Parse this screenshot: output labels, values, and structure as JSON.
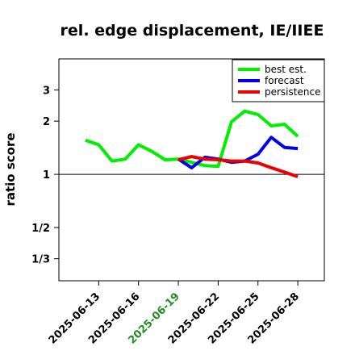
{
  "chart_data": {
    "type": "line",
    "title": "rel. edge displacement, IE/IIEE",
    "xlabel": "",
    "ylabel": "ratio score",
    "y_scale": "log",
    "ylim": [
      0.25,
      4.5
    ],
    "xlim": [
      "2025-06-10",
      "2025-06-30"
    ],
    "grid": false,
    "reference_line": 1,
    "legend_position": "top-right",
    "ytick_labels": [
      {
        "value": 3,
        "label": "3"
      },
      {
        "value": 2,
        "label": "2"
      },
      {
        "value": 1,
        "label": "1"
      },
      {
        "value": 0.5,
        "label": "1/2"
      },
      {
        "value": 0.3333,
        "label": "1/3"
      }
    ],
    "xtick_labels": [
      {
        "date": "2025-06-13",
        "label": "2025-06-13",
        "color": "#000000"
      },
      {
        "date": "2025-06-16",
        "label": "2025-06-16",
        "color": "#000000"
      },
      {
        "date": "2025-06-19",
        "label": "2025-06-19",
        "color": "#228b22"
      },
      {
        "date": "2025-06-22",
        "label": "2025-06-22",
        "color": "#000000"
      },
      {
        "date": "2025-06-25",
        "label": "2025-06-25",
        "color": "#000000"
      },
      {
        "date": "2025-06-28",
        "label": "2025-06-28",
        "color": "#000000"
      }
    ],
    "series": [
      {
        "name": "best est.",
        "color": "#00ee00",
        "x": [
          "2025-06-12",
          "2025-06-13",
          "2025-06-14",
          "2025-06-15",
          "2025-06-16",
          "2025-06-17",
          "2025-06-18",
          "2025-06-19",
          "2025-06-20",
          "2025-06-21",
          "2025-06-22",
          "2025-06-23",
          "2025-06-24",
          "2025-06-25",
          "2025-06-26",
          "2025-06-27",
          "2025-06-28"
        ],
        "values": [
          1.56,
          1.47,
          1.19,
          1.22,
          1.47,
          1.35,
          1.21,
          1.22,
          1.17,
          1.12,
          1.11,
          1.98,
          2.28,
          2.18,
          1.88,
          1.92,
          1.64
        ]
      },
      {
        "name": "forecast",
        "color": "#0000ee",
        "x": [
          "2025-06-19",
          "2025-06-20",
          "2025-06-21",
          "2025-06-22",
          "2025-06-23",
          "2025-06-24",
          "2025-06-25",
          "2025-06-26",
          "2025-06-27",
          "2025-06-28"
        ],
        "values": [
          1.22,
          1.09,
          1.25,
          1.22,
          1.17,
          1.19,
          1.3,
          1.62,
          1.42,
          1.4
        ]
      },
      {
        "name": "persistence",
        "color": "#ee0000",
        "x": [
          "2025-06-19",
          "2025-06-20",
          "2025-06-21",
          "2025-06-22",
          "2025-06-23",
          "2025-06-24",
          "2025-06-25",
          "2025-06-26",
          "2025-06-27",
          "2025-06-28"
        ],
        "values": [
          1.21,
          1.26,
          1.22,
          1.21,
          1.19,
          1.19,
          1.16,
          1.09,
          1.03,
          0.97
        ]
      }
    ]
  }
}
